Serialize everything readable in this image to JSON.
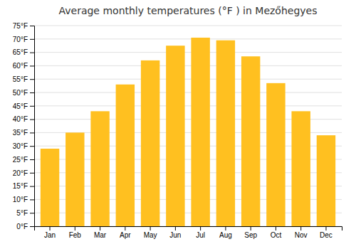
{
  "chart_data": {
    "type": "bar",
    "title": "Average monthly temperatures (°F ) in Mezőhegyes",
    "categories": [
      "Jan",
      "Feb",
      "Mar",
      "Apr",
      "May",
      "Jun",
      "Jul",
      "Aug",
      "Sep",
      "Oct",
      "Nov",
      "Dec"
    ],
    "values": [
      29,
      35,
      43,
      53,
      62,
      67.5,
      70.5,
      69.5,
      63.5,
      53.5,
      43,
      34
    ],
    "color": "#FFC020",
    "ylim": [
      0,
      75
    ],
    "yticks": [
      {
        "value": 0,
        "label": "0°F"
      },
      {
        "value": 5,
        "label": "5°F"
      },
      {
        "value": 10,
        "label": "10°F"
      },
      {
        "value": 15,
        "label": "15°F"
      },
      {
        "value": 20,
        "label": "20°F"
      },
      {
        "value": 25,
        "label": "25°F"
      },
      {
        "value": 30,
        "label": "30°F"
      },
      {
        "value": 35,
        "label": "35°F"
      },
      {
        "value": 40,
        "label": "40°F"
      },
      {
        "value": 45,
        "label": "45°F"
      },
      {
        "value": 50,
        "label": "50°F"
      },
      {
        "value": 55,
        "label": "55°F"
      },
      {
        "value": 60,
        "label": "60°F"
      },
      {
        "value": 65,
        "label": "65°F"
      },
      {
        "value": 70,
        "label": "70°F"
      },
      {
        "value": 75,
        "label": "75°F"
      }
    ],
    "grid": true
  }
}
